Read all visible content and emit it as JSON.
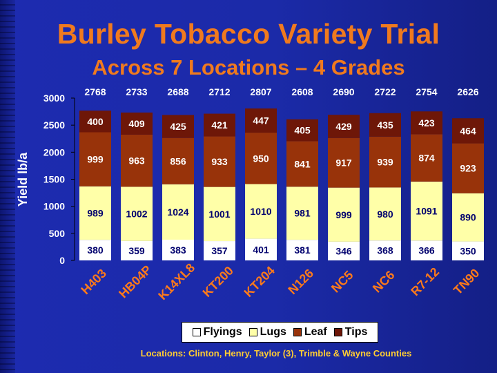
{
  "title": "Burley Tobacco Variety Trial",
  "subtitle": "Across 7 Locations – 4 Grades",
  "footnote": "Locations: Clinton, Henry, Taylor (3), Trimble & Wayne Counties",
  "legend": [
    {
      "label": "Flyings",
      "color": "#ffffff"
    },
    {
      "label": "Lugs",
      "color": "#ffffa8"
    },
    {
      "label": "Leaf",
      "color": "#98330a"
    },
    {
      "label": "Tips",
      "color": "#6e1708"
    }
  ],
  "chart_data": {
    "type": "bar",
    "stacked": true,
    "ylabel": "Yield lb/a",
    "ylim": [
      0,
      3000
    ],
    "yticks": [
      0,
      500,
      1000,
      1500,
      2000,
      2500,
      3000
    ],
    "categories": [
      "H403",
      "HB04P",
      "K14XL8",
      "KT200",
      "KT204",
      "N126",
      "NC5",
      "NC6",
      "R7-12",
      "TN90"
    ],
    "totals": [
      2768,
      2733,
      2688,
      2712,
      2807,
      2608,
      2690,
      2722,
      2754,
      2626
    ],
    "series": [
      {
        "name": "Flyings",
        "values": [
          380,
          359,
          383,
          357,
          401,
          381,
          346,
          368,
          366,
          350
        ]
      },
      {
        "name": "Lugs",
        "values": [
          989,
          1002,
          1024,
          1001,
          1010,
          981,
          999,
          980,
          1091,
          890
        ]
      },
      {
        "name": "Leaf",
        "values": [
          999,
          963,
          856,
          933,
          950,
          841,
          917,
          939,
          874,
          923
        ]
      },
      {
        "name": "Tips",
        "values": [
          400,
          409,
          425,
          421,
          447,
          405,
          429,
          435,
          423,
          464
        ]
      }
    ],
    "series_colors": [
      "#ffffff",
      "#ffffa8",
      "#98330a",
      "#6e1708"
    ],
    "label_colors": [
      "#00006e",
      "#00006e",
      "#ffffff",
      "#ffffff"
    ],
    "grid": false,
    "legend_position": "bottom"
  }
}
